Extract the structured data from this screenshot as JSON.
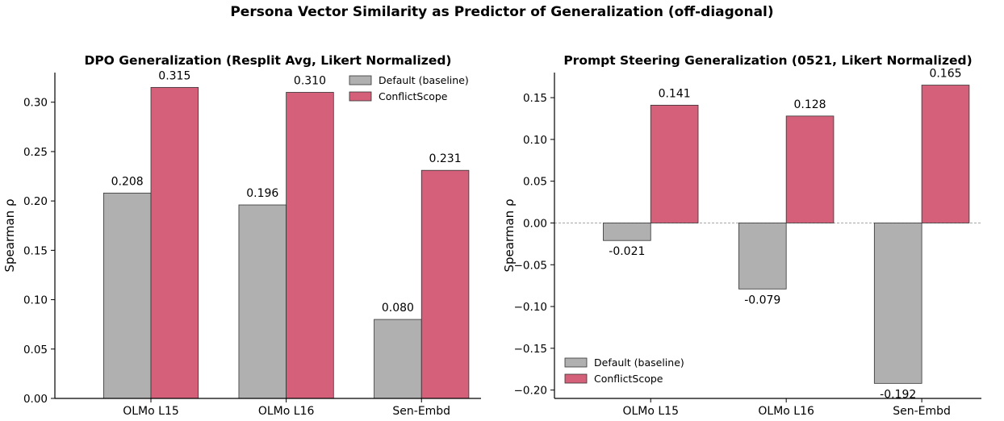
{
  "suptitle": "Persona Vector Similarity as Predictor of Generalization (off-diagonal)",
  "colors": {
    "baseline": "#b0b0b0",
    "conflict": "#d4607a",
    "edge": "#333333"
  },
  "chart_data": [
    {
      "type": "bar",
      "title": "DPO Generalization (Resplit Avg, Likert Normalized)",
      "xlabel": "",
      "ylabel": "Spearman ρ",
      "categories": [
        "OLMo L15",
        "OLMo L16",
        "Sen-Embd"
      ],
      "series": [
        {
          "name": "Default (baseline)",
          "values": [
            0.208,
            0.196,
            0.08
          ],
          "labels": [
            "0.208",
            "0.196",
            "0.080"
          ]
        },
        {
          "name": "ConflictScope",
          "values": [
            0.315,
            0.31,
            0.231
          ],
          "labels": [
            "0.315",
            "0.310",
            "0.231"
          ]
        }
      ],
      "ylim": [
        0,
        0.33
      ],
      "yticks": [
        0.0,
        0.05,
        0.1,
        0.15,
        0.2,
        0.25,
        0.3
      ],
      "ytick_labels": [
        "0.00",
        "0.05",
        "0.10",
        "0.15",
        "0.20",
        "0.25",
        "0.30"
      ],
      "legend": "top-right",
      "grid": false
    },
    {
      "type": "bar",
      "title": "Prompt Steering Generalization (0521, Likert Normalized)",
      "xlabel": "",
      "ylabel": "Spearman ρ",
      "categories": [
        "OLMo L15",
        "OLMo L16",
        "Sen-Embd"
      ],
      "series": [
        {
          "name": "Default (baseline)",
          "values": [
            -0.021,
            -0.079,
            -0.192
          ],
          "labels": [
            "-0.021",
            "-0.079",
            "-0.192"
          ]
        },
        {
          "name": "ConflictScope",
          "values": [
            0.141,
            0.128,
            0.165
          ],
          "labels": [
            "0.141",
            "0.128",
            "0.165"
          ]
        }
      ],
      "ylim": [
        -0.21,
        0.18
      ],
      "yticks": [
        -0.2,
        -0.15,
        -0.1,
        -0.05,
        0.0,
        0.05,
        0.1,
        0.15
      ],
      "ytick_labels": [
        "−0.20",
        "−0.15",
        "−0.10",
        "−0.05",
        "0.00",
        "0.05",
        "0.10",
        "0.15"
      ],
      "legend": "bottom-left",
      "grid": false,
      "zero_line": true
    }
  ]
}
